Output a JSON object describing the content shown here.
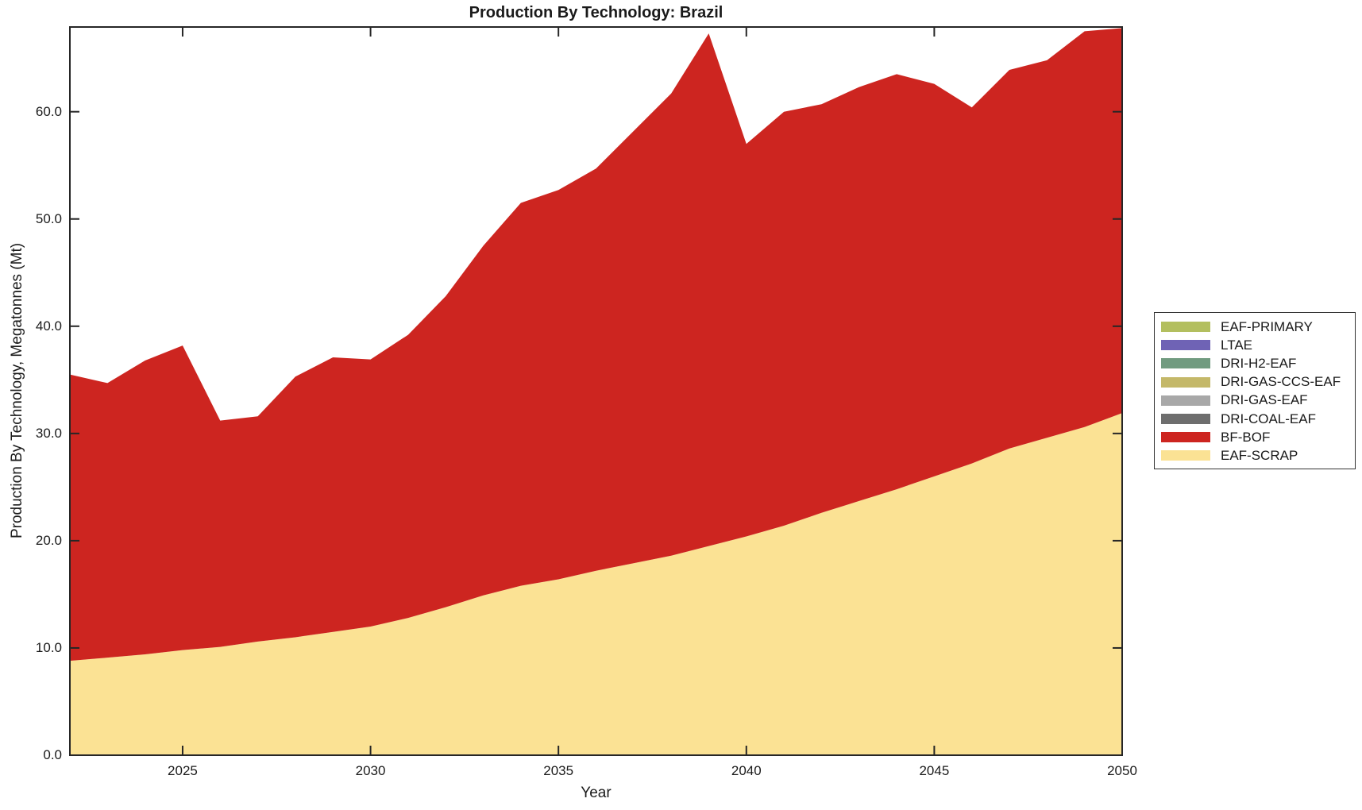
{
  "title": "Production By Technology: Brazil",
  "text_color": "#1a1a1a",
  "axis_color": "#262626",
  "chart_data": {
    "type": "area",
    "stacked": true,
    "title": "Production By Technology: Brazil",
    "xlabel": "Year",
    "ylabel": "Production By Technology, Megatonnes (Mt)",
    "xlim": [
      2022,
      2050
    ],
    "ylim": [
      0,
      67.9
    ],
    "xticks": [
      2025,
      2030,
      2035,
      2040,
      2045,
      2050
    ],
    "yticks": [
      0,
      10,
      20,
      30,
      40,
      50,
      60
    ],
    "ytick_decimals": 1,
    "grid": false,
    "legend_position": "right-outside",
    "x": [
      2022,
      2023,
      2024,
      2025,
      2026,
      2027,
      2028,
      2029,
      2030,
      2031,
      2032,
      2033,
      2034,
      2035,
      2036,
      2037,
      2038,
      2039,
      2040,
      2041,
      2042,
      2043,
      2044,
      2045,
      2046,
      2047,
      2048,
      2049,
      2050
    ],
    "series": [
      {
        "name": "EAF-SCRAP",
        "color": "#fbe294",
        "values": [
          8.8,
          9.1,
          9.4,
          9.8,
          10.1,
          10.6,
          11.0,
          11.5,
          12.0,
          12.8,
          13.8,
          14.9,
          15.8,
          16.4,
          17.2,
          17.9,
          18.6,
          19.5,
          20.4,
          21.4,
          22.6,
          23.7,
          24.8,
          26.0,
          27.2,
          28.6,
          29.6,
          30.6,
          31.9
        ]
      },
      {
        "name": "BF-BOF",
        "color": "#cd2520",
        "values": [
          26.7,
          25.6,
          27.4,
          28.4,
          21.1,
          21.0,
          24.3,
          25.6,
          24.9,
          26.4,
          29.0,
          32.6,
          35.7,
          36.3,
          37.5,
          40.3,
          43.1,
          47.8,
          36.6,
          38.6,
          38.1,
          38.6,
          38.7,
          36.6,
          33.2,
          35.3,
          35.2,
          36.9,
          35.9
        ]
      },
      {
        "name": "DRI-COAL-EAF",
        "color": "#6e6e6e",
        "values": [
          0,
          0,
          0,
          0,
          0,
          0,
          0,
          0,
          0,
          0,
          0,
          0,
          0,
          0,
          0,
          0,
          0,
          0,
          0,
          0,
          0,
          0,
          0,
          0,
          0,
          0,
          0,
          0,
          0
        ]
      },
      {
        "name": "DRI-GAS-EAF",
        "color": "#a8a8a8",
        "values": [
          0,
          0,
          0,
          0,
          0,
          0,
          0,
          0,
          0,
          0,
          0,
          0,
          0,
          0,
          0,
          0,
          0,
          0,
          0,
          0,
          0,
          0,
          0,
          0,
          0,
          0,
          0,
          0,
          0
        ]
      },
      {
        "name": "DRI-GAS-CCS-EAF",
        "color": "#c4b869",
        "values": [
          0,
          0,
          0,
          0,
          0,
          0,
          0,
          0,
          0,
          0,
          0,
          0,
          0,
          0,
          0,
          0,
          0,
          0,
          0,
          0,
          0,
          0,
          0,
          0,
          0,
          0,
          0,
          0,
          0
        ]
      },
      {
        "name": "DRI-H2-EAF",
        "color": "#719b80",
        "values": [
          0,
          0,
          0,
          0,
          0,
          0,
          0,
          0,
          0,
          0,
          0,
          0,
          0,
          0,
          0,
          0,
          0,
          0,
          0,
          0,
          0,
          0,
          0,
          0,
          0,
          0,
          0,
          0,
          0
        ]
      },
      {
        "name": "LTAE",
        "color": "#6f63b5",
        "values": [
          0,
          0,
          0,
          0,
          0,
          0,
          0,
          0,
          0,
          0,
          0,
          0,
          0,
          0,
          0,
          0,
          0,
          0,
          0,
          0,
          0,
          0,
          0,
          0,
          0,
          0,
          0,
          0,
          0
        ]
      },
      {
        "name": "EAF-PRIMARY",
        "color": "#b3bf5f",
        "values": [
          0,
          0,
          0,
          0,
          0,
          0,
          0,
          0,
          0,
          0,
          0,
          0,
          0,
          0,
          0,
          0,
          0,
          0,
          0,
          0,
          0,
          0,
          0,
          0,
          0,
          0,
          0,
          0,
          0
        ]
      }
    ],
    "legend_order": [
      "EAF-PRIMARY",
      "LTAE",
      "DRI-H2-EAF",
      "DRI-GAS-CCS-EAF",
      "DRI-GAS-EAF",
      "DRI-COAL-EAF",
      "BF-BOF",
      "EAF-SCRAP"
    ]
  }
}
